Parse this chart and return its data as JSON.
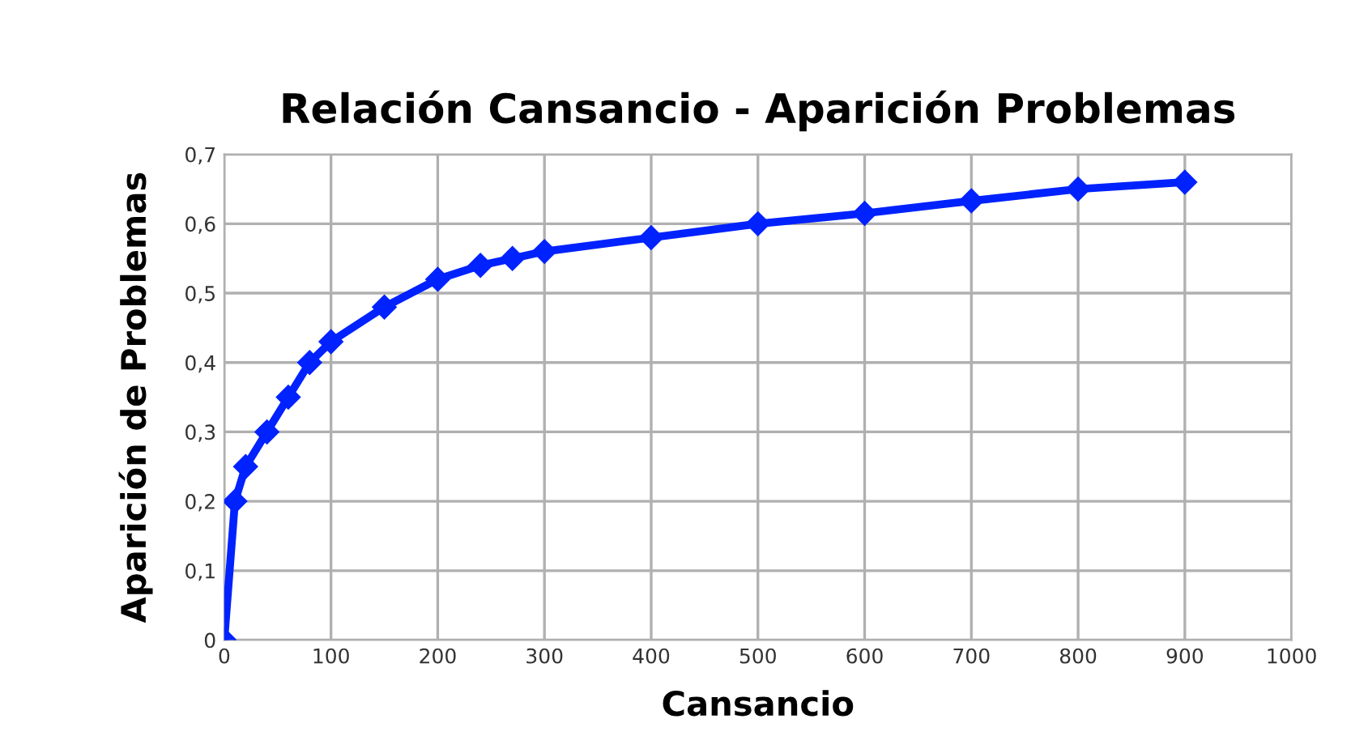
{
  "chart_data": {
    "type": "line",
    "title": "Relación Cansancio - Aparición Problemas",
    "xlabel": "Cansancio",
    "ylabel": "Aparición de Problemas",
    "x": [
      0,
      10,
      20,
      40,
      60,
      80,
      100,
      150,
      200,
      240,
      270,
      300,
      400,
      500,
      600,
      700,
      800,
      900
    ],
    "series": [
      {
        "color": "#0022ff",
        "values": [
          0,
          0.2,
          0.25,
          0.3,
          0.35,
          0.4,
          0.43,
          0.48,
          0.52,
          0.54,
          0.55,
          0.56,
          0.58,
          0.6,
          0.615,
          0.633,
          0.65,
          0.66
        ]
      }
    ],
    "xlim": [
      0,
      1000
    ],
    "xticks": [
      0,
      100,
      200,
      300,
      400,
      500,
      600,
      700,
      800,
      900,
      1000
    ],
    "ylim": [
      0,
      0.7
    ],
    "yticks": [
      0,
      {
        "value": 0.1,
        "label": "0,1"
      },
      {
        "value": 0.2,
        "label": "0,2"
      },
      {
        "value": 0.3,
        "label": "0,3"
      },
      {
        "value": 0.4,
        "label": "0,4"
      },
      {
        "value": 0.5,
        "label": "0,5"
      },
      {
        "value": 0.6,
        "label": "0,6"
      },
      {
        "value": 0.7,
        "label": "0,7"
      }
    ],
    "grid": true,
    "marker": "diamond",
    "line_style": "solid",
    "legend": false
  }
}
